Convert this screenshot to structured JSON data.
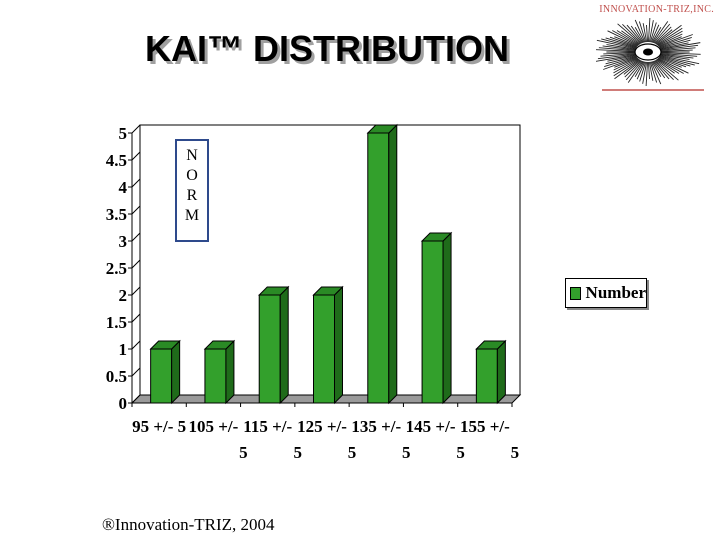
{
  "brand": "INNOVATION-TRIZ,INC.",
  "title": "KAI™ DISTRIBUTION",
  "norm_letters": [
    "N",
    "O",
    "R",
    "M"
  ],
  "footer": "®Innovation-TRIZ, 2004",
  "colors": {
    "bar_front": "#33a02c",
    "bar_side": "#1f6b1a",
    "bar_top": "#2a8a25",
    "brand": "#c0504d",
    "norm_box": "#2e4a8c"
  },
  "chart_data": {
    "type": "bar",
    "categories": [
      "95 +/- 5",
      "105 +/- 5",
      "115 +/- 5",
      "125 +/- 5",
      "135 +/- 5",
      "145 +/- 5",
      "155 +/- 5"
    ],
    "x_tick_rows": [
      [
        "95 +/- 5",
        "105 +/-",
        "115 +/-",
        "125 +/-",
        "135 +/-",
        "145 +/-",
        "155 +/-"
      ],
      [
        "",
        "5",
        "5",
        "5",
        "5",
        "5",
        "5"
      ]
    ],
    "series": [
      {
        "name": "Number",
        "values": [
          1,
          1,
          2,
          2,
          5,
          3,
          1
        ]
      }
    ],
    "y_ticks": [
      "0",
      "0.5",
      "1",
      "1.5",
      "2",
      "2.5",
      "3",
      "3.5",
      "4",
      "4.5",
      "5"
    ],
    "ylim": [
      0,
      5
    ],
    "grid": false,
    "legend": "right"
  }
}
